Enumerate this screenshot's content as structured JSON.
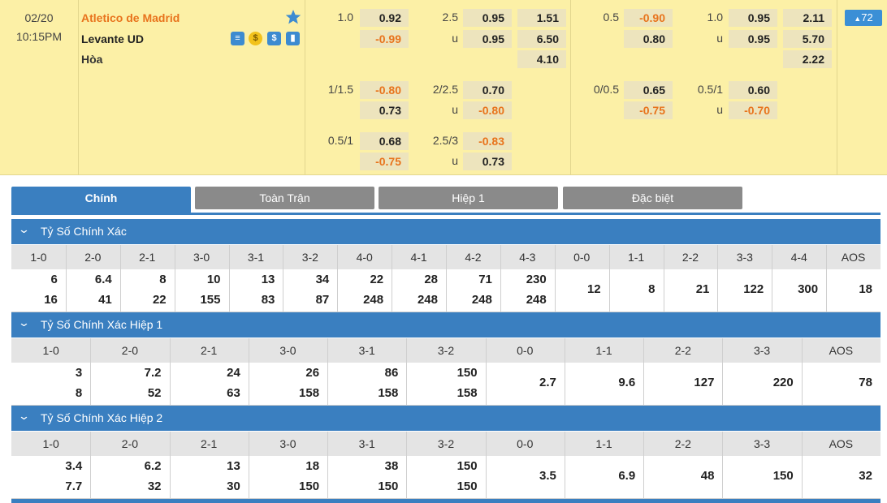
{
  "match": {
    "date": "02/20",
    "time": "10:15PM",
    "home": "Atletico de Madrid",
    "away": "Levante UD",
    "draw": "Hòa",
    "badge": "72"
  },
  "odds": [
    [
      [
        "1.0",
        null
      ],
      [
        "0.92",
        "-0.99"
      ],
      [
        "2.5",
        "u"
      ],
      [
        "0.95",
        "0.95"
      ],
      [
        "1.51",
        "6.50",
        "4.10"
      ],
      [
        "0.5",
        null
      ],
      [
        "-0.90",
        "0.80"
      ],
      [
        "1.0",
        "u"
      ],
      [
        "0.95",
        "0.95"
      ],
      [
        "2.11",
        "5.70",
        "2.22"
      ]
    ],
    [
      [
        "1/1.5",
        null
      ],
      [
        "-0.80",
        "0.73"
      ],
      [
        "2/2.5",
        "u"
      ],
      [
        "0.70",
        "-0.80"
      ],
      [],
      [
        "0/0.5",
        null
      ],
      [
        "0.65",
        "-0.75"
      ],
      [
        "0.5/1",
        "u"
      ],
      [
        "0.60",
        "-0.70"
      ],
      []
    ],
    [
      [
        "0.5/1",
        null
      ],
      [
        "0.68",
        "-0.75"
      ],
      [
        "2.5/3",
        "u"
      ],
      [
        "-0.83",
        "0.73"
      ],
      [],
      [],
      [],
      [],
      [],
      []
    ]
  ],
  "tabs": [
    "Chính",
    "Toàn Trận",
    "Hiệp 1",
    "Đặc biệt"
  ],
  "sections": [
    {
      "title": "Tỷ Số Chính Xác",
      "columns": [
        {
          "score": "1-0",
          "values": [
            "6",
            "16"
          ]
        },
        {
          "score": "2-0",
          "values": [
            "6.4",
            "41"
          ]
        },
        {
          "score": "2-1",
          "values": [
            "8",
            "22"
          ]
        },
        {
          "score": "3-0",
          "values": [
            "10",
            "155"
          ]
        },
        {
          "score": "3-1",
          "values": [
            "13",
            "83"
          ]
        },
        {
          "score": "3-2",
          "values": [
            "34",
            "87"
          ]
        },
        {
          "score": "4-0",
          "values": [
            "22",
            "248"
          ]
        },
        {
          "score": "4-1",
          "values": [
            "28",
            "248"
          ]
        },
        {
          "score": "4-2",
          "values": [
            "71",
            "248"
          ]
        },
        {
          "score": "4-3",
          "values": [
            "230",
            "248"
          ]
        },
        {
          "score": "0-0",
          "values": [
            "12"
          ]
        },
        {
          "score": "1-1",
          "values": [
            "8"
          ]
        },
        {
          "score": "2-2",
          "values": [
            "21"
          ]
        },
        {
          "score": "3-3",
          "values": [
            "122"
          ]
        },
        {
          "score": "4-4",
          "values": [
            "300"
          ]
        },
        {
          "score": "AOS",
          "values": [
            "18"
          ]
        }
      ]
    },
    {
      "title": "Tỷ Số Chính Xác Hiệp 1",
      "columns": [
        {
          "score": "1-0",
          "values": [
            "3",
            "8"
          ]
        },
        {
          "score": "2-0",
          "values": [
            "7.2",
            "52"
          ]
        },
        {
          "score": "2-1",
          "values": [
            "24",
            "63"
          ]
        },
        {
          "score": "3-0",
          "values": [
            "26",
            "158"
          ]
        },
        {
          "score": "3-1",
          "values": [
            "86",
            "158"
          ]
        },
        {
          "score": "3-2",
          "values": [
            "150",
            "158"
          ]
        },
        {
          "score": "0-0",
          "values": [
            "2.7"
          ]
        },
        {
          "score": "1-1",
          "values": [
            "9.6"
          ]
        },
        {
          "score": "2-2",
          "values": [
            "127"
          ]
        },
        {
          "score": "3-3",
          "values": [
            "220"
          ]
        },
        {
          "score": "AOS",
          "values": [
            "78"
          ]
        }
      ]
    },
    {
      "title": "Tỷ Số Chính Xác Hiệp 2",
      "columns": [
        {
          "score": "1-0",
          "values": [
            "3.4",
            "7.7"
          ]
        },
        {
          "score": "2-0",
          "values": [
            "6.2",
            "32"
          ]
        },
        {
          "score": "2-1",
          "values": [
            "13",
            "30"
          ]
        },
        {
          "score": "3-0",
          "values": [
            "18",
            "150"
          ]
        },
        {
          "score": "3-1",
          "values": [
            "38",
            "150"
          ]
        },
        {
          "score": "3-2",
          "values": [
            "150",
            "150"
          ]
        },
        {
          "score": "0-0",
          "values": [
            "3.5"
          ]
        },
        {
          "score": "1-1",
          "values": [
            "6.9"
          ]
        },
        {
          "score": "2-2",
          "values": [
            "48"
          ]
        },
        {
          "score": "3-3",
          "values": [
            "150"
          ]
        },
        {
          "score": "AOS",
          "values": [
            "32"
          ]
        }
      ]
    }
  ]
}
